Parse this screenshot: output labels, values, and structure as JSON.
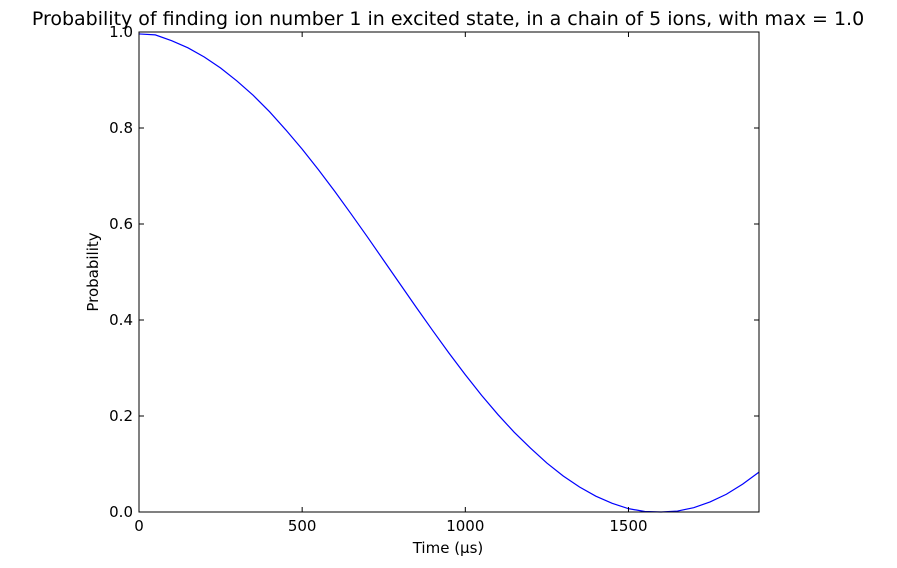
{
  "chart_data": {
    "type": "line",
    "title": "Probability of finding ion number 1 in excited state, in a chain of 5 ions, with max = 1.0",
    "xlabel": "Time (μs)",
    "ylabel": "Probability",
    "xlim": [
      0,
      1900
    ],
    "ylim": [
      0.0,
      1.0
    ],
    "xticks": [
      0,
      500,
      1000,
      1500
    ],
    "xtick_labels": [
      "0",
      "500",
      "1000",
      "1500"
    ],
    "yticks": [
      0.0,
      0.2,
      0.4,
      0.6,
      0.8,
      1.0
    ],
    "ytick_labels": [
      "0.0",
      "0.2",
      "0.4",
      "0.6",
      "0.8",
      "1.0"
    ],
    "grid": false,
    "series": [
      {
        "color": "#0000ff",
        "x": [
          0,
          50,
          100,
          150,
          200,
          250,
          300,
          350,
          400,
          450,
          500,
          550,
          600,
          650,
          700,
          750,
          800,
          850,
          900,
          950,
          1000,
          1050,
          1100,
          1150,
          1200,
          1250,
          1300,
          1350,
          1400,
          1450,
          1500,
          1550,
          1600,
          1650,
          1700,
          1750,
          1800,
          1850,
          1900
        ],
        "y": [
          0.996,
          0.994,
          0.982,
          0.967,
          0.948,
          0.925,
          0.898,
          0.868,
          0.834,
          0.796,
          0.756,
          0.713,
          0.668,
          0.621,
          0.573,
          0.524,
          0.475,
          0.426,
          0.378,
          0.331,
          0.286,
          0.243,
          0.203,
          0.166,
          0.133,
          0.102,
          0.075,
          0.052,
          0.033,
          0.018,
          0.007,
          0.001,
          0.0,
          0.002,
          0.009,
          0.021,
          0.037,
          0.058,
          0.083
        ]
      }
    ]
  }
}
